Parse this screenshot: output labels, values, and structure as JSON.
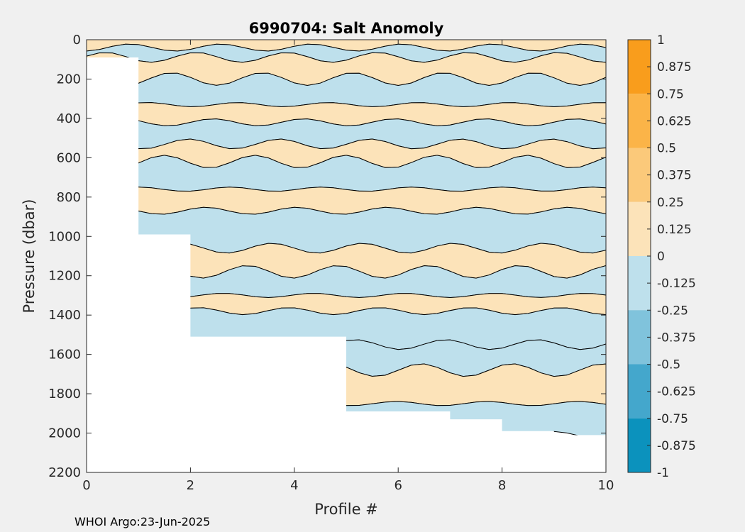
{
  "chart_data": {
    "type": "heatmap",
    "subtype": "filled-contour",
    "title": "6990704: Salt Anomoly",
    "xlabel": "Profile #",
    "ylabel": "Pressure (dbar)",
    "xlim": [
      0,
      10
    ],
    "ylim": [
      0,
      2200
    ],
    "y_reversed": true,
    "xticks": [
      "0",
      "2",
      "4",
      "6",
      "8",
      "10"
    ],
    "yticks": [
      "0",
      "200",
      "400",
      "600",
      "800",
      "1000",
      "1200",
      "1400",
      "1600",
      "1800",
      "2000",
      "2200"
    ],
    "profile_max_pressure": [
      {
        "x_start": 0,
        "x_end": 1,
        "max_pressure": 90
      },
      {
        "x_start": 1,
        "x_end": 2,
        "max_pressure": 990
      },
      {
        "x_start": 2,
        "x_end": 5,
        "max_pressure": 1510
      },
      {
        "x_start": 5,
        "x_end": 7,
        "max_pressure": 1890
      },
      {
        "x_start": 7,
        "x_end": 8,
        "max_pressure": 1930
      },
      {
        "x_start": 8,
        "x_end": 9,
        "max_pressure": 1990
      },
      {
        "x_start": 9,
        "x_end": 10,
        "max_pressure": 2010
      }
    ],
    "anomaly_layers": [
      {
        "p_top": 0,
        "p_bottom": 40,
        "value": 0.1
      },
      {
        "p_top": 40,
        "p_bottom": 90,
        "value": -0.1
      },
      {
        "p_top": 90,
        "p_bottom": 200,
        "value": 0.1
      },
      {
        "p_top": 200,
        "p_bottom": 330,
        "value": -0.1
      },
      {
        "p_top": 330,
        "p_bottom": 420,
        "value": 0.1
      },
      {
        "p_top": 420,
        "p_bottom": 530,
        "value": -0.1
      },
      {
        "p_top": 530,
        "p_bottom": 620,
        "value": 0.1
      },
      {
        "p_top": 620,
        "p_bottom": 760,
        "value": -0.1
      },
      {
        "p_top": 760,
        "p_bottom": 870,
        "value": 0.1
      },
      {
        "p_top": 870,
        "p_bottom": 1060,
        "value": -0.1
      },
      {
        "p_top": 1060,
        "p_bottom": 1180,
        "value": 0.1
      },
      {
        "p_top": 1180,
        "p_bottom": 1300,
        "value": -0.1
      },
      {
        "p_top": 1300,
        "p_bottom": 1380,
        "value": 0.1
      },
      {
        "p_top": 1380,
        "p_bottom": 1550,
        "value": -0.1
      },
      {
        "p_top": 1550,
        "p_bottom": 1680,
        "value": -0.1
      },
      {
        "p_top": 1680,
        "p_bottom": 1850,
        "value": 0.1
      },
      {
        "p_top": 1850,
        "p_bottom": 2010,
        "value": -0.1
      }
    ],
    "colorbar": {
      "min": -1,
      "max": 1,
      "ticks": [
        "1",
        "0.875",
        "0.75",
        "0.625",
        "0.5",
        "0.375",
        "0.25",
        "0.125",
        "0",
        "-0.125",
        "-0.25",
        "-0.375",
        "-0.5",
        "-0.625",
        "-0.75",
        "-0.875",
        "-1"
      ],
      "bands": [
        {
          "from": 0.75,
          "to": 1,
          "color": "#f99d1c"
        },
        {
          "from": 0.5,
          "to": 0.75,
          "color": "#fbb448"
        },
        {
          "from": 0.25,
          "to": 0.5,
          "color": "#fbc97a"
        },
        {
          "from": 0,
          "to": 0.25,
          "color": "#fce3b9"
        },
        {
          "from": -0.25,
          "to": 0,
          "color": "#bee0ec"
        },
        {
          "from": -0.5,
          "to": -0.25,
          "color": "#80c3dc"
        },
        {
          "from": -0.75,
          "to": -0.5,
          "color": "#44a7cc"
        },
        {
          "from": -1,
          "to": -0.75,
          "color": "#0b92bd"
        }
      ]
    }
  },
  "footer": "WHOI Argo:23-Jun-2025",
  "colors": {
    "figure_bg": "#f0f0f0",
    "plot_bg": "#ffffff",
    "contour_line": "#000000"
  }
}
